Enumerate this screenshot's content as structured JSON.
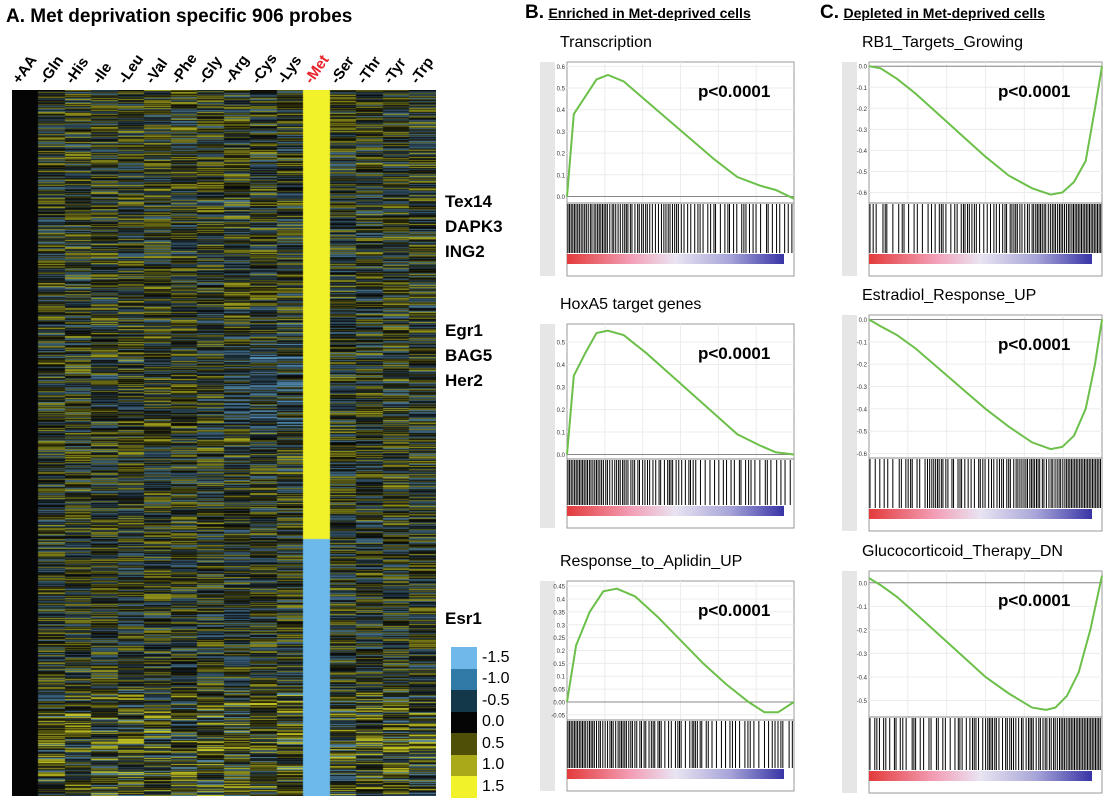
{
  "panelA": {
    "title": "A. Met deprivation specific 906 probes",
    "columns": [
      "+AA",
      "-Gln",
      "-His",
      "-Ile",
      "-Leu",
      "-Val",
      "-Phe",
      "-Gly",
      "-Arg",
      "-Cys",
      "-Lys",
      "-Met",
      "-Ser",
      "-Thr",
      "-Tyr",
      "-Trp"
    ],
    "highlight_column": "-Met",
    "highlight_color": "#e8232a",
    "gene_groups": [
      [
        "Tex14",
        "DAPK3",
        "ING2"
      ],
      [
        "Egr1",
        "BAG5",
        "Her2"
      ],
      [
        "Esr1"
      ]
    ],
    "legend": [
      {
        "label": "-1.5",
        "color": "#6fb8ea"
      },
      {
        "label": "-1.0",
        "color": "#2f7aa6"
      },
      {
        "label": "-0.5",
        "color": "#12384a"
      },
      {
        "label": "0.0",
        "color": "#050505"
      },
      {
        "label": "0.5",
        "color": "#4f4f08"
      },
      {
        "label": "1.0",
        "color": "#a9a91a"
      },
      {
        "label": "1.5",
        "color": "#f2f22a"
      }
    ]
  },
  "panelB": {
    "letter": "B.",
    "subtitle": "Enriched in Met-deprived cells",
    "plots": [
      {
        "title": "Transcription",
        "pvalue": "p<0.0001",
        "yticks": [
          "0.6",
          "0.5",
          "0.4",
          "0.3",
          "0.2",
          "0.1",
          "0.0"
        ]
      },
      {
        "title": "HoxA5 target genes",
        "pvalue": "p<0.0001",
        "yticks": [
          "0.5",
          "0.4",
          "0.3",
          "0.2",
          "0.1",
          "0.0"
        ]
      },
      {
        "title": "Response_to_Aplidin_UP",
        "pvalue": "p<0.0001",
        "yticks": [
          "0.45",
          "0.4",
          "0.35",
          "0.3",
          "0.25",
          "0.2",
          "0.15",
          "0.1",
          "0.05",
          "0.00",
          "-0.05"
        ]
      }
    ]
  },
  "panelC": {
    "letter": "C.",
    "subtitle": "Depleted in Met-deprived cells",
    "plots": [
      {
        "title": "RB1_Targets_Growing",
        "pvalue": "p<0.0001",
        "yticks": [
          "0.0",
          "-0.1",
          "-0.2",
          "-0.3",
          "-0.4",
          "-0.5",
          "-0.6"
        ]
      },
      {
        "title": "Estradiol_Response_UP",
        "pvalue": "p<0.0001",
        "yticks": [
          "0.0",
          "-0.1",
          "-0.2",
          "-0.3",
          "-0.4",
          "-0.5",
          "-0.6"
        ]
      },
      {
        "title": "Glucocorticoid_Therapy_DN",
        "pvalue": "p<0.0001",
        "yticks": [
          "0.0",
          "-0.1",
          "-0.2",
          "-0.3",
          "-0.4",
          "-0.5"
        ]
      }
    ]
  },
  "chart_data": [
    {
      "type": "heatmap",
      "title": "Met deprivation specific 906 probes",
      "columns": [
        "+AA",
        "-Gln",
        "-His",
        "-Ile",
        "-Leu",
        "-Val",
        "-Phe",
        "-Gly",
        "-Arg",
        "-Cys",
        "-Lys",
        "-Met",
        "-Ser",
        "-Thr",
        "-Tyr",
        "-Trp"
      ],
      "rows": 906,
      "color_scale": [
        -1.5,
        1.5
      ],
      "note_values": {
        "+AA": 0.0,
        "-Met_upper_portion": 1.5,
        "-Met_lower_portion": -1.5
      }
    },
    {
      "type": "line",
      "title": "Transcription",
      "x": [
        0,
        0.03,
        0.08,
        0.13,
        0.18,
        0.25,
        0.35,
        0.45,
        0.55,
        0.65,
        0.75,
        0.85,
        0.92,
        1.0
      ],
      "y": [
        0,
        0.38,
        0.46,
        0.54,
        0.56,
        0.53,
        0.44,
        0.35,
        0.26,
        0.17,
        0.09,
        0.05,
        0.03,
        -0.01
      ],
      "ylim": [
        -0.03,
        0.62
      ]
    },
    {
      "type": "line",
      "title": "HoxA5 target genes",
      "x": [
        0,
        0.03,
        0.08,
        0.13,
        0.18,
        0.25,
        0.35,
        0.45,
        0.55,
        0.65,
        0.75,
        0.85,
        0.92,
        1.0
      ],
      "y": [
        0,
        0.35,
        0.45,
        0.54,
        0.55,
        0.53,
        0.45,
        0.36,
        0.27,
        0.18,
        0.09,
        0.04,
        0.01,
        0.0
      ],
      "ylim": [
        -0.02,
        0.58
      ]
    },
    {
      "type": "line",
      "title": "Response_to_Aplidin_UP",
      "x": [
        0,
        0.04,
        0.1,
        0.16,
        0.22,
        0.3,
        0.4,
        0.5,
        0.6,
        0.7,
        0.8,
        0.87,
        0.93,
        1.0
      ],
      "y": [
        0,
        0.22,
        0.35,
        0.43,
        0.44,
        0.41,
        0.33,
        0.24,
        0.15,
        0.07,
        0.0,
        -0.04,
        -0.04,
        0.0
      ],
      "ylim": [
        -0.07,
        0.47
      ]
    },
    {
      "type": "line",
      "title": "RB1_Targets_Growing",
      "x": [
        0,
        0.05,
        0.12,
        0.2,
        0.3,
        0.4,
        0.5,
        0.6,
        0.7,
        0.78,
        0.83,
        0.88,
        0.93,
        0.97,
        1.0
      ],
      "y": [
        0,
        -0.01,
        -0.06,
        -0.13,
        -0.23,
        -0.33,
        -0.43,
        -0.52,
        -0.58,
        -0.61,
        -0.6,
        -0.55,
        -0.45,
        -0.2,
        0.0
      ],
      "ylim": [
        -0.65,
        0.02
      ]
    },
    {
      "type": "line",
      "title": "Estradiol_Response_UP",
      "x": [
        0,
        0.05,
        0.12,
        0.2,
        0.3,
        0.4,
        0.5,
        0.6,
        0.7,
        0.78,
        0.83,
        0.88,
        0.93,
        0.97,
        1.0
      ],
      "y": [
        0,
        -0.03,
        -0.07,
        -0.13,
        -0.22,
        -0.31,
        -0.4,
        -0.48,
        -0.55,
        -0.58,
        -0.57,
        -0.52,
        -0.4,
        -0.2,
        0.0
      ],
      "ylim": [
        -0.62,
        0.02
      ]
    },
    {
      "type": "line",
      "title": "Glucocorticoid_Therapy_DN",
      "x": [
        0,
        0.05,
        0.12,
        0.2,
        0.3,
        0.4,
        0.5,
        0.6,
        0.7,
        0.76,
        0.8,
        0.85,
        0.9,
        0.95,
        1.0
      ],
      "y": [
        0.02,
        -0.01,
        -0.06,
        -0.13,
        -0.22,
        -0.31,
        -0.4,
        -0.47,
        -0.53,
        -0.54,
        -0.53,
        -0.48,
        -0.38,
        -0.2,
        0.03
      ],
      "ylim": [
        -0.57,
        0.05
      ]
    }
  ]
}
